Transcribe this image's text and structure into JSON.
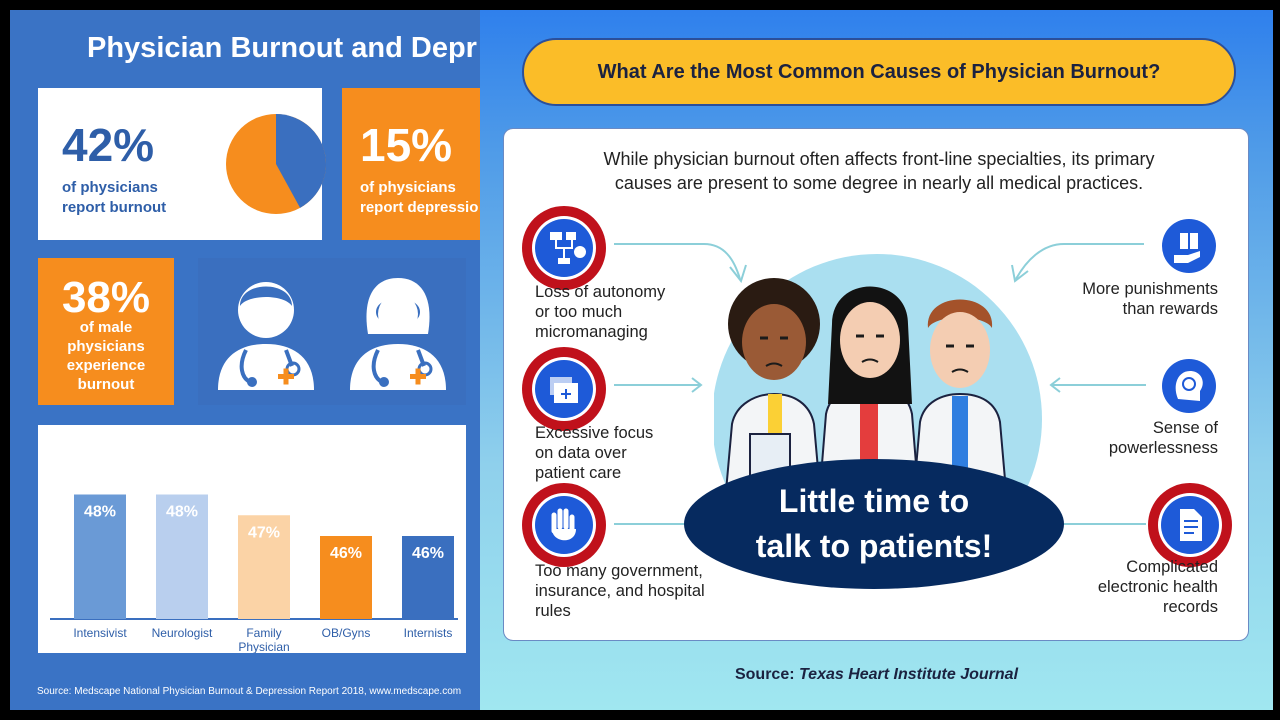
{
  "left": {
    "title": "Physician Burnout and Depr",
    "stat1": {
      "value": "42%",
      "line1": "of physicians",
      "line2": "report burnout",
      "fraction": 0.42
    },
    "stat2": {
      "value": "15%",
      "line1": "of physicians",
      "line2": "report depressio"
    },
    "stat3": {
      "value": "38%",
      "line1": "of male",
      "line2": "physicians",
      "line3": "experience",
      "line4": "burnout"
    },
    "source": "Source: Medscape National Physician Burnout & Depression Report 2018, www.medscape.com",
    "colors": {
      "blue": "#3a73c5",
      "orange": "#f68d1e",
      "dark_blue": "#2e5ea8"
    }
  },
  "chart_data": {
    "type": "bar",
    "categories": [
      "Intensivist",
      "Neurologist",
      "Family Physician",
      "OB/Gyns",
      "Internists"
    ],
    "values": [
      48,
      48,
      47,
      46,
      46
    ],
    "data_labels": [
      "48%",
      "48%",
      "47%",
      "46%",
      "46%"
    ],
    "colors": [
      "#6a9ad6",
      "#b9cfee",
      "#fbd3a6",
      "#f68d1e",
      "#3a6fbf"
    ],
    "ylim": [
      0,
      50
    ]
  },
  "right": {
    "header": "What Are the Most Common Causes of Physician Burnout?",
    "intro_line1": "While physician burnout often affects front-line specialties, its primary",
    "intro_line2": "causes are present to some degree in nearly all medical practices.",
    "causes_left": [
      {
        "lines": [
          "Loss of autonomy",
          "or too much",
          "micromanaging"
        ],
        "icon": "flowchart-icon"
      },
      {
        "lines": [
          "Excessive focus",
          "on data over",
          "patient care"
        ],
        "icon": "folders-icon"
      },
      {
        "lines": [
          "Too many government,",
          "insurance, and hospital",
          "rules"
        ],
        "icon": "hand-stop-icon"
      }
    ],
    "causes_right": [
      {
        "lines": [
          "More punishments",
          "than rewards"
        ],
        "icon": "gift-hand-icon"
      },
      {
        "lines": [
          "Sense of",
          "powerlessness"
        ],
        "icon": "sad-head-icon"
      },
      {
        "lines": [
          "Complicated",
          "electronic health",
          "records"
        ],
        "icon": "document-icon"
      }
    ],
    "callout_line1": "Little time to",
    "callout_line2": "talk to patients!",
    "source_prefix": "Source: ",
    "source_name": "Texas Heart Institute Journal",
    "colors": {
      "header_bg": "#fbbd28",
      "icon_blue": "#1e5ad8",
      "icon_ring": "#c0111b",
      "callout_bg": "#062a5f"
    }
  }
}
